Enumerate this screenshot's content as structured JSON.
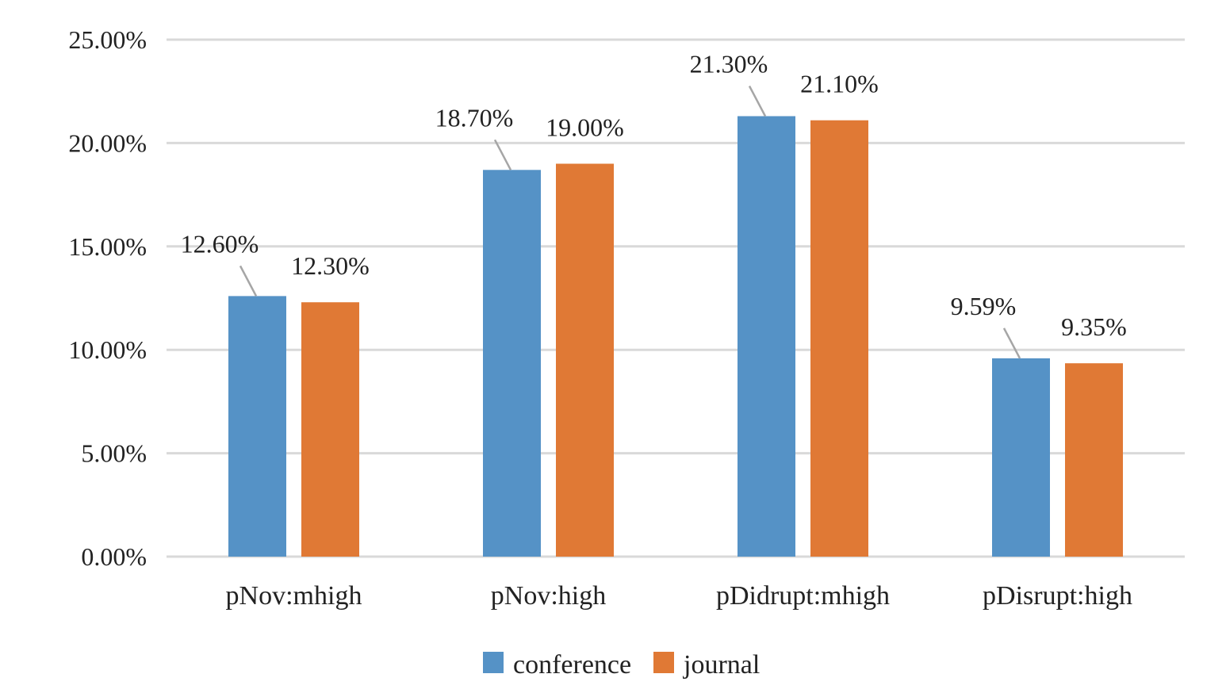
{
  "chart_data": {
    "type": "bar",
    "categories": [
      "pNov:mhigh",
      "pNov:high",
      "pDidrupt:mhigh",
      "pDisrupt:high"
    ],
    "series": [
      {
        "name": "conference",
        "color": "#5592C6",
        "values": [
          12.6,
          18.7,
          21.3,
          9.59
        ],
        "labels": [
          "12.60%",
          "18.70%",
          "21.30%",
          "9.59%"
        ]
      },
      {
        "name": "journal",
        "color": "#E07935",
        "values": [
          12.3,
          19.0,
          21.1,
          9.35
        ],
        "labels": [
          "12.30%",
          "19.00%",
          "21.10%",
          "9.35%"
        ]
      }
    ],
    "yticks": [
      0,
      5,
      10,
      15,
      20,
      25
    ],
    "ytick_labels": [
      "0.00%",
      "5.00%",
      "10.00%",
      "15.00%",
      "20.00%",
      "25.00%"
    ],
    "ylim": [
      0,
      25
    ],
    "title": "",
    "xlabel": "",
    "ylabel": "",
    "grid": true,
    "legend_position": "bottom"
  }
}
